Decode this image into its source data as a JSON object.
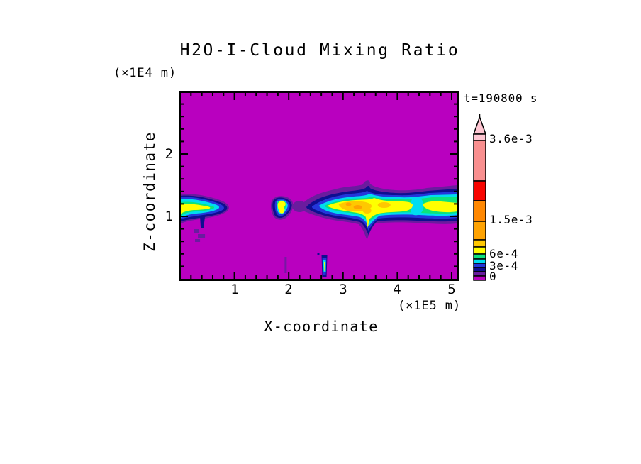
{
  "chart_data": {
    "type": "heatmap",
    "subtype": "filled-contour cross-section",
    "title": "H2O-I-Cloud Mixing Ratio",
    "time_label": "t=190800 s",
    "x_axis": {
      "label": "X-coordinate",
      "unit": "(×1E5 m)",
      "range": [
        0,
        5.1
      ],
      "tick_labels": [
        "1",
        "2",
        "3",
        "4",
        "5"
      ],
      "minor_step": 0.2
    },
    "y_axis": {
      "label": "Z-coordinate",
      "unit": "(×1E4 m)",
      "range": [
        0,
        2.95
      ],
      "tick_labels": [
        "1",
        "2"
      ],
      "minor_step": 0.2
    },
    "field_colors": {
      "magenta": "#b900bf",
      "purple": "#6a1c9e",
      "navy": "#0e0e90",
      "blue": "#2436da",
      "cyan": "#00dcf0",
      "green": "#0ce27d",
      "yellow": "#ffff00",
      "amber": "#ffc800",
      "orange": "#ffa200",
      "dark_orange": "#ff8700",
      "red": "#f80400",
      "salmon": "#f98f8f",
      "pink": "#ffc6d2"
    },
    "colorbar": {
      "arrow_color": "#ffc6d2",
      "labels": [
        {
          "text": "3.6e-3",
          "value": 0.0036
        },
        {
          "text": "1.5e-3",
          "value": 0.0015
        },
        {
          "text": "6e-4",
          "value": 0.0006
        },
        {
          "text": "3e-4",
          "value": 0.0003
        },
        {
          "text": "0",
          "value": 0
        }
      ],
      "segments_top_to_bottom": [
        {
          "name": "pink",
          "color": "#ffc6d2",
          "h": 9
        },
        {
          "name": "salmon",
          "color": "#f98f8f",
          "h": 57
        },
        {
          "name": "red",
          "color": "#f80400",
          "h": 28
        },
        {
          "name": "dark-orange",
          "color": "#ff8700",
          "h": 29
        },
        {
          "name": "orange",
          "color": "#ffa200",
          "h": 26
        },
        {
          "name": "amber",
          "color": "#ffc800",
          "h": 10
        },
        {
          "name": "yellow",
          "color": "#ffff00",
          "h": 10
        },
        {
          "name": "green",
          "color": "#0ce27d",
          "h": 7
        },
        {
          "name": "cyan",
          "color": "#00dcf0",
          "h": 6
        },
        {
          "name": "blue",
          "color": "#2436da",
          "h": 6
        },
        {
          "name": "navy",
          "color": "#0e0e90",
          "h": 6
        },
        {
          "name": "purple",
          "color": "#6a1c9e",
          "h": 6
        },
        {
          "name": "magenta",
          "color": "#b900bf",
          "h": 6
        }
      ]
    },
    "features": [
      {
        "desc": "cloud band attached to left edge",
        "x_extent_1e5m": [
          0.0,
          0.85
        ],
        "z_extent_1e4m": [
          0.95,
          1.35
        ],
        "peak_level": "yellow (~1e-3)"
      },
      {
        "desc": "small isolated cloud blob",
        "x_extent_1e5m": [
          1.7,
          2.1
        ],
        "z_extent_1e4m": [
          0.95,
          1.3
        ],
        "peak_level": "yellow (~1e-3)"
      },
      {
        "desc": "main cloud band reaching right edge",
        "x_extent_1e5m": [
          2.3,
          5.1
        ],
        "z_extent_1e4m": [
          0.95,
          1.45
        ],
        "peak_level": "orange (~1.5e-3)",
        "note": "downward spike near x=3.4 reaching z=0.7; pinch near x=4.35"
      },
      {
        "desc": "thin vertical streak near surface",
        "x_extent_1e5m": [
          2.6,
          2.7
        ],
        "z_extent_1e4m": [
          0.05,
          0.4
        ],
        "peak_level": "yellow"
      }
    ],
    "background_value": 0
  }
}
